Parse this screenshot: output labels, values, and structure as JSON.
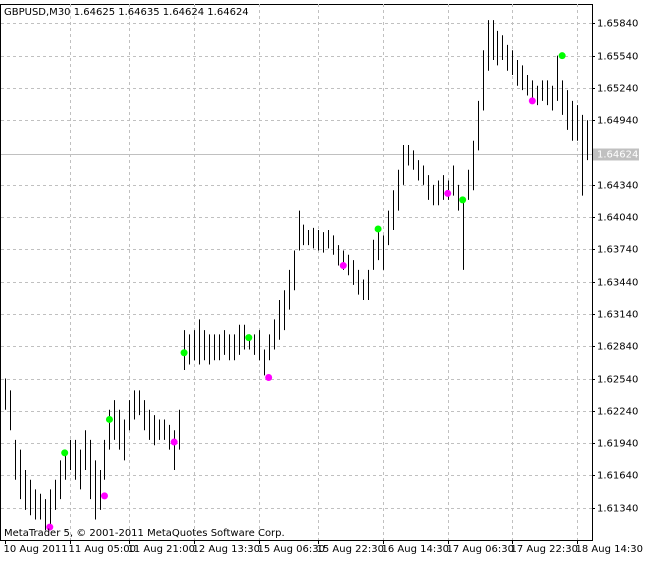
{
  "chart_data": {
    "type": "ohlc",
    "title": "GBPUSD,M30  1.64625 1.64635 1.64624 1.64624",
    "footer": "MetaTrader 5, © 2001-2011 MetaQuotes Software Corp.",
    "color": "#000000",
    "grid": true,
    "xlim": [
      0,
      118
    ],
    "ylim": [
      1.6104,
      1.6602
    ],
    "yticks": [
      {
        "value": 1.6134,
        "label": "1.61340"
      },
      {
        "value": 1.6164,
        "label": "1.61640"
      },
      {
        "value": 1.6194,
        "label": "1.61940"
      },
      {
        "value": 1.6224,
        "label": "1.62240"
      },
      {
        "value": 1.6254,
        "label": "1.62540"
      },
      {
        "value": 1.6284,
        "label": "1.62840"
      },
      {
        "value": 1.6314,
        "label": "1.63140"
      },
      {
        "value": 1.6344,
        "label": "1.63440"
      },
      {
        "value": 1.6374,
        "label": "1.63740"
      },
      {
        "value": 1.6404,
        "label": "1.64040"
      },
      {
        "value": 1.6434,
        "label": "1.64340"
      },
      {
        "value": 1.6494,
        "label": "1.64940"
      },
      {
        "value": 1.6524,
        "label": "1.65240"
      },
      {
        "value": 1.6554,
        "label": "1.65540"
      },
      {
        "value": 1.6584,
        "label": "1.65840"
      }
    ],
    "xticks": [
      {
        "value": 0,
        "label": "10 Aug 2011"
      },
      {
        "value": 13,
        "label": "11 Aug 05:00"
      },
      {
        "value": 25,
        "label": "11 Aug 21:00"
      },
      {
        "value": 38,
        "label": "12 Aug 13:30"
      },
      {
        "value": 51,
        "label": "15 Aug 06:30"
      },
      {
        "value": 63,
        "label": "15 Aug 22:30"
      },
      {
        "value": 76,
        "label": "16 Aug 14:30"
      },
      {
        "value": 89,
        "label": "17 Aug 06:30"
      },
      {
        "value": 102,
        "label": "17 Aug 22:30"
      },
      {
        "value": 115,
        "label": "18 Aug 14:30"
      }
    ],
    "current_price": {
      "value": 1.64624,
      "label": "1.64624",
      "color": "#c0c0c0"
    },
    "high": [
      1.6254,
      1.6243,
      1.6197,
      1.6188,
      1.6169,
      1.616,
      1.6151,
      1.6147,
      1.6142,
      1.6151,
      1.616,
      1.6178,
      1.6188,
      1.6197,
      1.6197,
      1.6188,
      1.6206,
      1.6197,
      1.6178,
      1.6169,
      1.6197,
      1.6225,
      1.6234,
      1.6225,
      1.6216,
      1.6234,
      1.6243,
      1.6243,
      1.6234,
      1.6225,
      1.622,
      1.6216,
      1.6216,
      1.6211,
      1.6206,
      1.6225,
      1.6299,
      1.6295,
      1.6299,
      1.6309,
      1.6299,
      1.6295,
      1.6295,
      1.6295,
      1.6299,
      1.6295,
      1.6295,
      1.6304,
      1.6304,
      1.6295,
      1.6295,
      1.6299,
      1.6281,
      1.6295,
      1.6309,
      1.6327,
      1.6336,
      1.6355,
      1.6373,
      1.641,
      1.6397,
      1.6392,
      1.6394,
      1.6392,
      1.639,
      1.6392,
      1.6387,
      1.6378,
      1.6373,
      1.6369,
      1.6364,
      1.6355,
      1.6346,
      1.6355,
      1.6383,
      1.6392,
      1.6387,
      1.641,
      1.6429,
      1.6448,
      1.6471,
      1.6471,
      1.6466,
      1.6457,
      1.6452,
      1.6443,
      1.6434,
      1.6438,
      1.6443,
      1.6438,
      1.6452,
      1.6434,
      1.642,
      1.6448,
      1.6475,
      1.6512,
      1.6559,
      1.6587,
      1.6587,
      1.6577,
      1.6573,
      1.6564,
      1.6559,
      1.655,
      1.6545,
      1.6536,
      1.6531,
      1.6526,
      1.6531,
      1.6531,
      1.6526,
      1.6554,
      1.6531,
      1.6522,
      1.6512,
      1.6508,
      1.6499,
      1.6494,
      1.6489
    ],
    "low": [
      1.6225,
      1.6206,
      1.616,
      1.6142,
      1.6132,
      1.6127,
      1.6123,
      1.6123,
      1.6113,
      1.6118,
      1.6132,
      1.6142,
      1.616,
      1.6169,
      1.616,
      1.6151,
      1.6169,
      1.6142,
      1.6123,
      1.6132,
      1.616,
      1.6188,
      1.6197,
      1.6188,
      1.6178,
      1.6206,
      1.6216,
      1.622,
      1.6206,
      1.6197,
      1.6192,
      1.6197,
      1.6197,
      1.6188,
      1.6169,
      1.6188,
      1.6262,
      1.6267,
      1.6271,
      1.6267,
      1.6271,
      1.6267,
      1.6271,
      1.6271,
      1.6276,
      1.6271,
      1.6271,
      1.6276,
      1.6281,
      1.6281,
      1.6276,
      1.6271,
      1.6257,
      1.6271,
      1.6281,
      1.629,
      1.6299,
      1.6318,
      1.6336,
      1.6373,
      1.6378,
      1.6378,
      1.6375,
      1.6373,
      1.6371,
      1.6375,
      1.6369,
      1.6359,
      1.6355,
      1.635,
      1.6341,
      1.6332,
      1.6327,
      1.6327,
      1.6355,
      1.6364,
      1.6355,
      1.6378,
      1.6392,
      1.641,
      1.6434,
      1.6452,
      1.6448,
      1.6438,
      1.6434,
      1.642,
      1.6415,
      1.6415,
      1.642,
      1.642,
      1.6424,
      1.641,
      1.6355,
      1.642,
      1.6429,
      1.6466,
      1.6503,
      1.654,
      1.655,
      1.6545,
      1.655,
      1.654,
      1.6536,
      1.6526,
      1.6522,
      1.6517,
      1.6512,
      1.6508,
      1.6512,
      1.6508,
      1.6503,
      1.6512,
      1.6499,
      1.6485,
      1.6475,
      1.6475,
      1.6424,
      1.6457,
      1.6462
    ],
    "signals": [
      {
        "color": "#00ff00",
        "x": [
          12,
          21,
          36,
          49,
          75,
          92,
          112
        ],
        "values": [
          1.6185,
          1.6216,
          1.6278,
          1.6292,
          1.6393,
          1.642,
          1.6554
        ]
      },
      {
        "color": "#ff00ff",
        "x": [
          9,
          20,
          34,
          53,
          68,
          89,
          106
        ],
        "values": [
          1.6116,
          1.6145,
          1.6195,
          1.6255,
          1.6359,
          1.6426,
          1.6512
        ]
      }
    ]
  }
}
